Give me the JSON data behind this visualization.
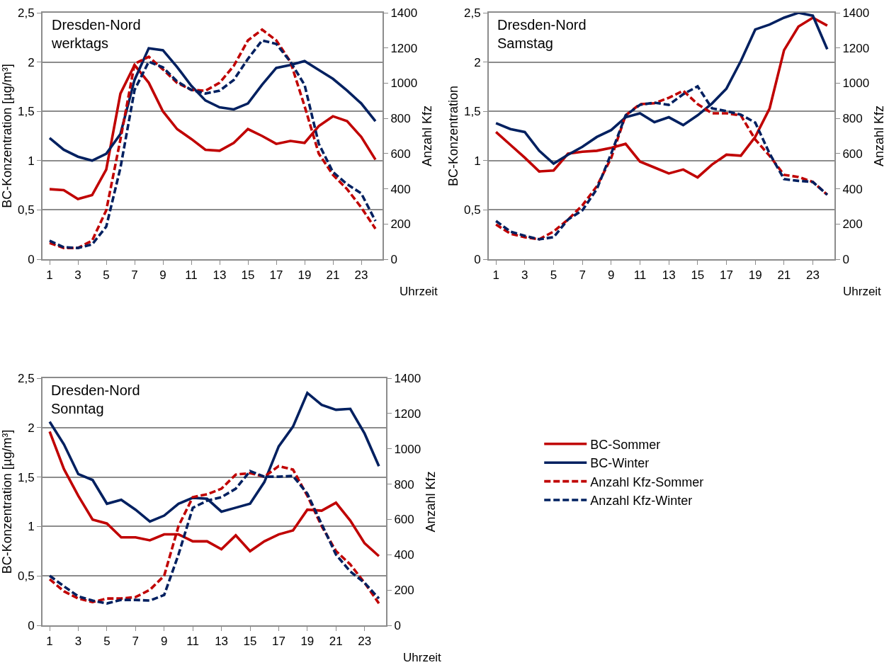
{
  "chart_data": [
    {
      "type": "line",
      "title": "Dresden-Nord\nwerktags",
      "xlabel": "Uhrzeit",
      "ylabel": "BC-Konzentration [µg/m³]",
      "y2label": "Anzahl Kfz",
      "x": [
        1,
        2,
        3,
        4,
        5,
        6,
        7,
        8,
        9,
        10,
        11,
        12,
        13,
        14,
        15,
        16,
        17,
        18,
        19,
        20,
        21,
        22,
        23,
        24
      ],
      "xlim": [
        0.5,
        24.5
      ],
      "xticks": [
        1,
        3,
        5,
        7,
        9,
        11,
        13,
        15,
        17,
        19,
        21,
        23
      ],
      "ylim": [
        0,
        2.5
      ],
      "yticks": [
        0,
        {
          "value": 0.5,
          "label": "0,5"
        },
        1,
        {
          "value": 1.5,
          "label": "1,5"
        },
        2,
        {
          "value": 2.5,
          "label": "2,5"
        }
      ],
      "y2lim": [
        0,
        1400
      ],
      "y2ticks": [
        0,
        200,
        400,
        600,
        800,
        1000,
        1200,
        1400
      ],
      "grid": "y",
      "legend": false,
      "marker": "none",
      "series": [
        {
          "color": "#c00000",
          "line_style": "solid",
          "values": [
            0.71,
            0.7,
            0.61,
            0.65,
            0.91,
            1.68,
            1.97,
            1.79,
            1.5,
            1.32,
            1.22,
            1.11,
            1.1,
            1.18,
            1.32,
            1.25,
            1.17,
            1.2,
            1.18,
            1.35,
            1.45,
            1.4,
            1.24,
            1.01
          ]
        },
        {
          "color": "#002060",
          "line_style": "solid",
          "values": [
            1.23,
            1.11,
            1.04,
            1.0,
            1.07,
            1.27,
            1.82,
            2.14,
            2.12,
            1.95,
            1.76,
            1.61,
            1.54,
            1.52,
            1.58,
            1.77,
            1.94,
            1.97,
            2.01,
            1.92,
            1.83,
            1.71,
            1.58,
            1.4
          ]
        },
        {
          "color": "#c00000",
          "line_style": "dashed",
          "axis": "y2",
          "values": [
            92,
            64,
            64,
            105,
            278,
            680,
            1110,
            1150,
            1078,
            1002,
            962,
            957,
            1002,
            1098,
            1243,
            1304,
            1243,
            1122,
            869,
            600,
            479,
            398,
            294,
            173
          ]
        },
        {
          "color": "#002060",
          "line_style": "dashed",
          "axis": "y2",
          "values": [
            105,
            68,
            64,
            84,
            185,
            519,
            962,
            1122,
            1090,
            1010,
            962,
            941,
            957,
            1018,
            1138,
            1243,
            1223,
            1122,
            990,
            656,
            495,
            426,
            374,
            217
          ]
        }
      ]
    },
    {
      "type": "line",
      "title": "Dresden-Nord\nSamstag",
      "xlabel": "Uhrzeit",
      "ylabel": "BC-Konzentration",
      "y2label": "Anzahl Kfz",
      "x": [
        1,
        2,
        3,
        4,
        5,
        6,
        7,
        8,
        9,
        10,
        11,
        12,
        13,
        14,
        15,
        16,
        17,
        18,
        19,
        20,
        21,
        22,
        23,
        24
      ],
      "xlim": [
        0.5,
        24.5
      ],
      "xticks": [
        1,
        3,
        5,
        7,
        9,
        11,
        13,
        15,
        17,
        19,
        21,
        23
      ],
      "ylim": [
        0,
        2.5
      ],
      "yticks": [
        0,
        {
          "value": 0.5,
          "label": "0,5"
        },
        1,
        {
          "value": 1.5,
          "label": "1,5"
        },
        2,
        {
          "value": 2.5,
          "label": "2,5"
        }
      ],
      "y2lim": [
        0,
        1400
      ],
      "y2ticks": [
        0,
        200,
        400,
        600,
        800,
        1000,
        1200,
        1400
      ],
      "grid": "y",
      "legend": false,
      "marker": "none",
      "series": [
        {
          "color": "#c00000",
          "line_style": "solid",
          "values": [
            1.29,
            1.16,
            1.03,
            0.89,
            0.9,
            1.07,
            1.09,
            1.1,
            1.13,
            1.17,
            0.99,
            0.93,
            0.87,
            0.91,
            0.83,
            0.96,
            1.06,
            1.05,
            1.24,
            1.53,
            2.12,
            2.36,
            2.45,
            2.37
          ]
        },
        {
          "color": "#002060",
          "line_style": "solid",
          "values": [
            1.38,
            1.32,
            1.29,
            1.1,
            0.97,
            1.06,
            1.14,
            1.24,
            1.31,
            1.44,
            1.48,
            1.39,
            1.44,
            1.36,
            1.46,
            1.58,
            1.73,
            2.01,
            2.33,
            2.38,
            2.45,
            2.5,
            2.47,
            2.13
          ]
        },
        {
          "color": "#c00000",
          "line_style": "dashed",
          "axis": "y2",
          "values": [
            197,
            145,
            125,
            113,
            157,
            225,
            306,
            414,
            575,
            817,
            881,
            886,
            917,
            957,
            881,
            829,
            829,
            817,
            680,
            587,
            479,
            467,
            439,
            366
          ]
        },
        {
          "color": "#002060",
          "line_style": "dashed",
          "axis": "y2",
          "values": [
            217,
            157,
            133,
            113,
            125,
            225,
            278,
            398,
            600,
            817,
            877,
            889,
            877,
            937,
            982,
            857,
            841,
            821,
            776,
            600,
            455,
            445,
            439,
            366
          ]
        }
      ]
    },
    {
      "type": "line",
      "title": "Dresden-Nord\nSonntag",
      "xlabel": "Uhrzeit",
      "ylabel": "BC-Konzentration [µg/m³]",
      "y2label": "Anzahl Kfz",
      "x": [
        1,
        2,
        3,
        4,
        5,
        6,
        7,
        8,
        9,
        10,
        11,
        12,
        13,
        14,
        15,
        16,
        17,
        18,
        19,
        20,
        21,
        22,
        23,
        24
      ],
      "xlim": [
        0.5,
        24.5
      ],
      "xticks": [
        1,
        3,
        5,
        7,
        9,
        11,
        13,
        15,
        17,
        19,
        21,
        23
      ],
      "ylim": [
        0,
        2.5
      ],
      "yticks": [
        0,
        {
          "value": 0.5,
          "label": "0,5"
        },
        1,
        {
          "value": 1.5,
          "label": "1,5"
        },
        2,
        {
          "value": 2.5,
          "label": "2,5"
        }
      ],
      "y2lim": [
        0,
        1400
      ],
      "y2ticks": [
        0,
        200,
        400,
        600,
        800,
        1000,
        1200,
        1400
      ],
      "grid": "y",
      "legend": "right",
      "marker": "none",
      "series": [
        {
          "name": "BC-Sommer",
          "color": "#c00000",
          "line_style": "solid",
          "values": [
            1.96,
            1.58,
            1.31,
            1.07,
            1.03,
            0.89,
            0.89,
            0.86,
            0.92,
            0.92,
            0.85,
            0.85,
            0.77,
            0.91,
            0.75,
            0.85,
            0.92,
            0.96,
            1.17,
            1.16,
            1.24,
            1.06,
            0.83,
            0.7
          ]
        },
        {
          "name": "BC-Winter",
          "color": "#002060",
          "line_style": "solid",
          "values": [
            2.06,
            1.83,
            1.53,
            1.47,
            1.23,
            1.27,
            1.17,
            1.05,
            1.11,
            1.23,
            1.29,
            1.28,
            1.15,
            1.19,
            1.23,
            1.45,
            1.81,
            2.01,
            2.35,
            2.23,
            2.18,
            2.19,
            1.94,
            1.61
          ]
        },
        {
          "name": "Anzahl Kfz-Sommer",
          "color": "#c00000",
          "line_style": "dashed",
          "axis": "y2",
          "values": [
            261,
            193,
            152,
            132,
            152,
            152,
            160,
            201,
            281,
            562,
            726,
            742,
            774,
            854,
            862,
            842,
            902,
            882,
            734,
            562,
            421,
            345,
            241,
            124
          ]
        },
        {
          "name": "Anzahl Kfz-Winter",
          "color": "#002060",
          "line_style": "dashed",
          "axis": "y2",
          "values": [
            281,
            221,
            164,
            140,
            124,
            144,
            144,
            140,
            172,
            401,
            666,
            706,
            726,
            774,
            874,
            842,
            842,
            846,
            746,
            574,
            401,
            305,
            241,
            152
          ]
        }
      ]
    }
  ]
}
